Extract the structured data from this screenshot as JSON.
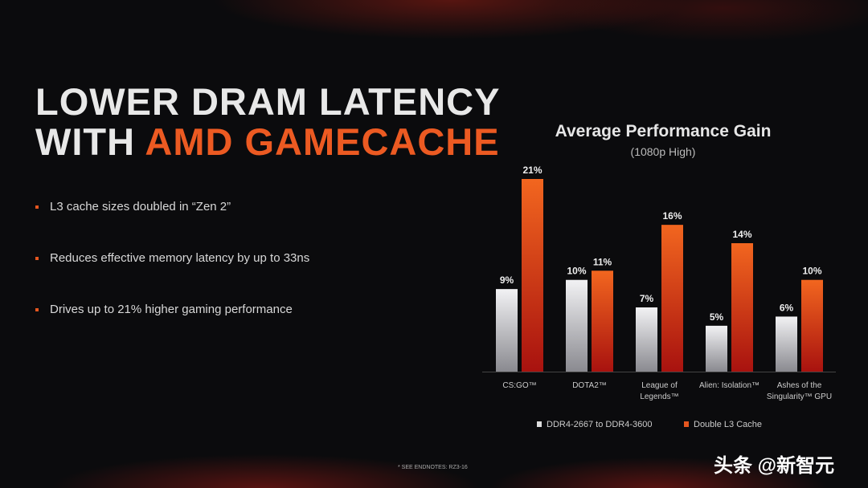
{
  "slide": {
    "title_line1": "LOWER DRAM LATENCY",
    "title_line2_prefix": "WITH ",
    "title_line2_accent": "AMD GAMECACHE",
    "bullets": [
      "L3 cache sizes doubled in “Zen 2”",
      "Reduces effective memory latency by up to 33ns",
      "Drives up to 21% higher gaming performance"
    ],
    "endnote": "* SEE ENDNOTES: RZ3-16",
    "watermark": "头条 @新智元"
  },
  "chart_data": {
    "type": "bar",
    "title": "Average Performance Gain",
    "subtitle": "(1080p High)",
    "categories": [
      "CS:GO™",
      "DOTA2™",
      "League of Legends™",
      "Alien: Isolation™",
      "Ashes of the Singularity™ GPU"
    ],
    "series": [
      {
        "name": "DDR4-2667 to DDR4-3600",
        "values": [
          9,
          10,
          7,
          5,
          6
        ],
        "labels": [
          "9%",
          "10%",
          "7%",
          "5%",
          "6%"
        ],
        "color": "#e0e0e2"
      },
      {
        "name": "Double L3 Cache",
        "values": [
          21,
          11,
          16,
          14,
          10
        ],
        "labels": [
          "21%",
          "11%",
          "16%",
          "14%",
          "10%"
        ],
        "color": "#f0601f"
      }
    ],
    "ylim": [
      0,
      21
    ],
    "grid": false,
    "legend": "bottom"
  }
}
